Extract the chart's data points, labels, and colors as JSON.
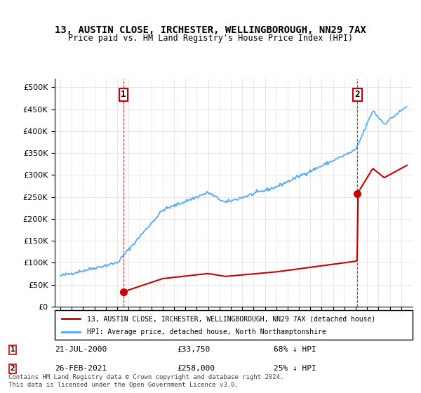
{
  "title": "13, AUSTIN CLOSE, IRCHESTER, WELLINGBOROUGH, NN29 7AX",
  "subtitle": "Price paid vs. HM Land Registry's House Price Index (HPI)",
  "sale1_date": "2000-07-21",
  "sale1_price": 33750,
  "sale1_label": "1",
  "sale1_pct": "68% ↓ HPI",
  "sale1_display": "21-JUL-2000",
  "sale2_date": "2021-02-26",
  "sale2_price": 258000,
  "sale2_label": "2",
  "sale2_pct": "25% ↓ HPI",
  "sale2_display": "26-FEB-2021",
  "hpi_label": "HPI: Average price, detached house, North Northamptonshire",
  "property_label": "13, AUSTIN CLOSE, IRCHESTER, WELLINGBOROUGH, NN29 7AX (detached house)",
  "hpi_color": "#4da6ff",
  "price_color": "#cc0000",
  "dashed_color": "#cc0000",
  "ylim_max": 520000,
  "footer": "Contains HM Land Registry data © Crown copyright and database right 2024.\nThis data is licensed under the Open Government Licence v3.0."
}
